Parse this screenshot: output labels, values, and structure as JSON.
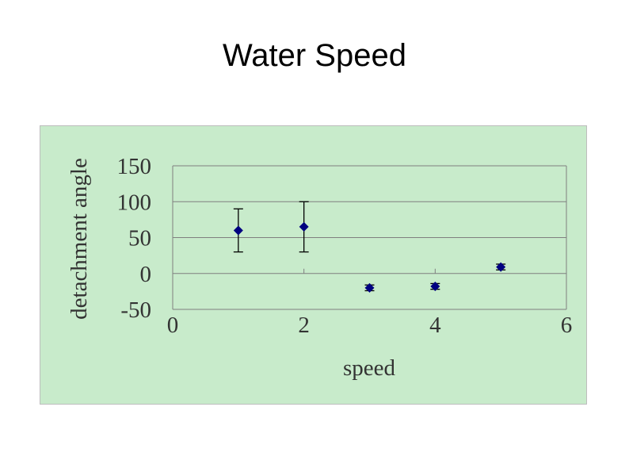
{
  "slide": {
    "title": "Water Speed"
  },
  "chart_data": {
    "type": "scatter",
    "title": "Water Speed",
    "xlabel": "speed",
    "ylabel": "detachment angle",
    "xlim": [
      0,
      6
    ],
    "ylim": [
      -50,
      150
    ],
    "x_ticks": [
      0,
      2,
      4,
      6
    ],
    "y_ticks": [
      150,
      100,
      50,
      0,
      -50
    ],
    "grid": "horizontal",
    "legend": "none",
    "series": [
      {
        "color": "#000080",
        "marker": "diamond",
        "points": [
          {
            "x": 1,
            "y": 60,
            "err_low": 30,
            "err_high": 90
          },
          {
            "x": 2,
            "y": 65,
            "err_low": 30,
            "err_high": 100
          },
          {
            "x": 3,
            "y": -20,
            "err_low": -24,
            "err_high": -16
          },
          {
            "x": 4,
            "y": -18,
            "err_low": -22,
            "err_high": -14
          },
          {
            "x": 5,
            "y": 9,
            "err_low": 5,
            "err_high": 13
          }
        ]
      }
    ],
    "colors": {
      "panel_background": "#c8ebcb",
      "gridline": "#7f7f7f",
      "error_bar": "#000000"
    }
  }
}
